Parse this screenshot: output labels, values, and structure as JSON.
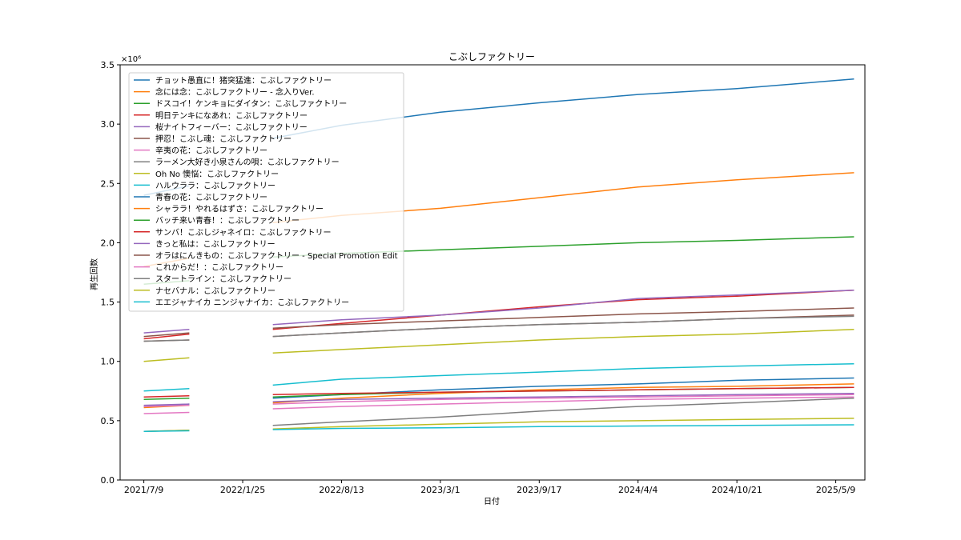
{
  "chart_data": {
    "type": "line",
    "title": "こぶしファクトリー",
    "xlabel": "日付",
    "ylabel": "再生回数",
    "y_scale_label": "×10⁶",
    "ylim": [
      0,
      3500000
    ],
    "y_ticks": [
      0,
      500000,
      1000000,
      1500000,
      2000000,
      2500000,
      3000000,
      3500000
    ],
    "y_tick_labels": [
      "0.0",
      "0.5",
      "1.0",
      "1.5",
      "2.0",
      "2.5",
      "3.0",
      "3.5"
    ],
    "xlim": [
      "2021-05-22",
      "2025-07-07"
    ],
    "x_ticks": [
      "2021-07-09",
      "2022-01-25",
      "2022-08-13",
      "2023-03-01",
      "2023-09-17",
      "2024-04-04",
      "2024-10-21",
      "2025-05-09"
    ],
    "x_tick_labels": [
      "2021/7/9",
      "2022/1/25",
      "2022/8/13",
      "2023/3/1",
      "2023/9/17",
      "2024/4/4",
      "2024/10/21",
      "2025/5/9"
    ],
    "grid": false,
    "legend_position": "upper-left",
    "segments": [
      [
        "2021-07-09",
        "2021-10-09"
      ],
      [
        "2022-03-27",
        "2025-06-15"
      ]
    ],
    "series": [
      {
        "name": "チョット愚直に！猪突猛進：こぶしファクトリー",
        "color": "#1f77b4",
        "points": [
          [
            "2021-07-09",
            2400000
          ],
          [
            "2021-10-09",
            2480000
          ],
          [
            "2022-03-27",
            2880000
          ],
          [
            "2022-08-13",
            2990000
          ],
          [
            "2023-03-01",
            3100000
          ],
          [
            "2023-09-17",
            3180000
          ],
          [
            "2024-04-04",
            3250000
          ],
          [
            "2024-10-21",
            3300000
          ],
          [
            "2025-06-15",
            3380000
          ]
        ]
      },
      {
        "name": "念には念：こぶしファクトリー - 念入りVer.",
        "color": "#ff7f0e",
        "points": [
          [
            "2021-07-09",
            1800000
          ],
          [
            "2021-10-09",
            1870000
          ],
          [
            "2022-03-27",
            2170000
          ],
          [
            "2022-08-13",
            2230000
          ],
          [
            "2023-03-01",
            2290000
          ],
          [
            "2023-09-17",
            2380000
          ],
          [
            "2024-04-04",
            2470000
          ],
          [
            "2024-10-21",
            2530000
          ],
          [
            "2025-06-15",
            2590000
          ]
        ]
      },
      {
        "name": "ドスコイ！ケンキョにダイタン：こぶしファクトリー",
        "color": "#2ca02c",
        "points": [
          [
            "2021-07-09",
            1650000
          ],
          [
            "2021-10-09",
            1680000
          ],
          [
            "2022-03-27",
            1880000
          ],
          [
            "2022-08-13",
            1910000
          ],
          [
            "2023-03-01",
            1940000
          ],
          [
            "2023-09-17",
            1970000
          ],
          [
            "2024-04-04",
            2000000
          ],
          [
            "2024-10-21",
            2020000
          ],
          [
            "2025-06-15",
            2050000
          ]
        ]
      },
      {
        "name": "明日テンキになあれ：こぶしファクトリー",
        "color": "#d62728",
        "points": [
          [
            "2021-07-09",
            1190000
          ],
          [
            "2021-10-09",
            1230000
          ],
          [
            "2022-03-27",
            1270000
          ],
          [
            "2022-08-13",
            1320000
          ],
          [
            "2023-03-01",
            1390000
          ],
          [
            "2023-09-17",
            1460000
          ],
          [
            "2024-04-04",
            1520000
          ],
          [
            "2024-10-21",
            1550000
          ],
          [
            "2025-06-15",
            1600000
          ]
        ]
      },
      {
        "name": "桜ナイトフィーバー：こぶしファクトリー",
        "color": "#9467bd",
        "points": [
          [
            "2021-07-09",
            1240000
          ],
          [
            "2021-10-09",
            1270000
          ],
          [
            "2022-03-27",
            1310000
          ],
          [
            "2022-08-13",
            1350000
          ],
          [
            "2023-03-01",
            1390000
          ],
          [
            "2023-09-17",
            1450000
          ],
          [
            "2024-04-04",
            1530000
          ],
          [
            "2024-10-21",
            1560000
          ],
          [
            "2025-06-15",
            1600000
          ]
        ]
      },
      {
        "name": "押忍！こぶし魂：こぶしファクトリー",
        "color": "#8c564b",
        "points": [
          [
            "2021-07-09",
            1210000
          ],
          [
            "2021-10-09",
            1240000
          ],
          [
            "2022-03-27",
            1280000
          ],
          [
            "2022-08-13",
            1310000
          ],
          [
            "2023-03-01",
            1340000
          ],
          [
            "2023-09-17",
            1370000
          ],
          [
            "2024-04-04",
            1400000
          ],
          [
            "2024-10-21",
            1420000
          ],
          [
            "2025-06-15",
            1450000
          ]
        ]
      },
      {
        "name": "辛夷の花：こぶしファクトリー",
        "color": "#e377c2",
        "points": [
          [
            "2021-07-09",
            560000
          ],
          [
            "2021-10-09",
            570000
          ],
          [
            "2022-03-27",
            600000
          ],
          [
            "2022-08-13",
            620000
          ],
          [
            "2023-03-01",
            640000
          ],
          [
            "2023-09-17",
            660000
          ],
          [
            "2024-04-04",
            680000
          ],
          [
            "2024-10-21",
            690000
          ],
          [
            "2025-06-15",
            700000
          ]
        ]
      },
      {
        "name": "ラーメン大好き小泉さんの唄：こぶしファクトリー",
        "color": "#7f7f7f",
        "points": [
          [
            "2021-07-09",
            410000
          ],
          [
            "2021-10-09",
            420000
          ],
          [
            "2022-03-27",
            460000
          ],
          [
            "2022-08-13",
            490000
          ],
          [
            "2023-03-01",
            530000
          ],
          [
            "2023-09-17",
            580000
          ],
          [
            "2024-04-04",
            620000
          ],
          [
            "2024-10-21",
            650000
          ],
          [
            "2025-06-15",
            690000
          ]
        ]
      },
      {
        "name": "Oh No 懊悩：こぶしファクトリー",
        "color": "#bcbd22",
        "points": [
          [
            "2021-07-09",
            1000000
          ],
          [
            "2021-10-09",
            1030000
          ],
          [
            "2022-03-27",
            1070000
          ],
          [
            "2022-08-13",
            1100000
          ],
          [
            "2023-03-01",
            1140000
          ],
          [
            "2023-09-17",
            1180000
          ],
          [
            "2024-04-04",
            1210000
          ],
          [
            "2024-10-21",
            1230000
          ],
          [
            "2025-06-15",
            1270000
          ]
        ]
      },
      {
        "name": "ハルウララ：こぶしファクトリー",
        "color": "#17becf",
        "points": [
          [
            "2021-07-09",
            750000
          ],
          [
            "2021-10-09",
            770000
          ],
          [
            "2022-03-27",
            800000
          ],
          [
            "2022-08-13",
            850000
          ],
          [
            "2023-03-01",
            880000
          ],
          [
            "2023-09-17",
            910000
          ],
          [
            "2024-04-04",
            940000
          ],
          [
            "2024-10-21",
            960000
          ],
          [
            "2025-06-15",
            980000
          ]
        ]
      },
      {
        "name": "青春の花：こぶしファクトリー",
        "color": "#1f77b4",
        "points": [
          [
            "2021-07-09",
            620000
          ],
          [
            "2021-10-09",
            640000
          ],
          [
            "2022-03-27",
            690000
          ],
          [
            "2022-08-13",
            720000
          ],
          [
            "2023-03-01",
            760000
          ],
          [
            "2023-09-17",
            790000
          ],
          [
            "2024-04-04",
            810000
          ],
          [
            "2024-10-21",
            840000
          ],
          [
            "2025-06-15",
            860000
          ]
        ]
      },
      {
        "name": "シャララ！やれるはずさ：こぶしファクトリー",
        "color": "#ff7f0e",
        "points": [
          [
            "2021-07-09",
            610000
          ],
          [
            "2021-10-09",
            630000
          ],
          [
            "2022-03-27",
            650000
          ],
          [
            "2022-08-13",
            690000
          ],
          [
            "2023-03-01",
            730000
          ],
          [
            "2023-09-17",
            760000
          ],
          [
            "2024-04-04",
            780000
          ],
          [
            "2024-10-21",
            790000
          ],
          [
            "2025-06-15",
            810000
          ]
        ]
      },
      {
        "name": "バッチ来い青春！：こぶしファクトリー",
        "color": "#2ca02c",
        "points": [
          [
            "2021-07-09",
            680000
          ],
          [
            "2021-10-09",
            690000
          ],
          [
            "2022-03-27",
            700000
          ],
          [
            "2022-08-13",
            720000
          ],
          [
            "2023-03-01",
            740000
          ],
          [
            "2023-09-17",
            750000
          ],
          [
            "2024-04-04",
            760000
          ],
          [
            "2024-10-21",
            770000
          ],
          [
            "2025-06-15",
            780000
          ]
        ]
      },
      {
        "name": "サンバ！こぶしジャネイロ：こぶしファクトリー",
        "color": "#d62728",
        "points": [
          [
            "2021-07-09",
            700000
          ],
          [
            "2021-10-09",
            710000
          ],
          [
            "2022-03-27",
            720000
          ],
          [
            "2022-08-13",
            730000
          ],
          [
            "2023-03-01",
            740000
          ],
          [
            "2023-09-17",
            750000
          ],
          [
            "2024-04-04",
            760000
          ],
          [
            "2024-10-21",
            770000
          ],
          [
            "2025-06-15",
            780000
          ]
        ]
      },
      {
        "name": "きっと私は：こぶしファクトリー",
        "color": "#9467bd",
        "points": [
          [
            "2021-07-09",
            630000
          ],
          [
            "2021-10-09",
            640000
          ],
          [
            "2022-03-27",
            660000
          ],
          [
            "2022-08-13",
            680000
          ],
          [
            "2023-03-01",
            690000
          ],
          [
            "2023-09-17",
            700000
          ],
          [
            "2024-04-04",
            710000
          ],
          [
            "2024-10-21",
            720000
          ],
          [
            "2025-06-15",
            730000
          ]
        ]
      },
      {
        "name": "オラはにんきもの：こぶしファクトリー - Special Promotion Edit",
        "color": "#8c564b",
        "points": [
          [
            "2021-07-09",
            1170000
          ],
          [
            "2021-10-09",
            1180000
          ],
          [
            "2022-03-27",
            1210000
          ],
          [
            "2022-08-13",
            1240000
          ],
          [
            "2023-03-01",
            1280000
          ],
          [
            "2023-09-17",
            1310000
          ],
          [
            "2024-04-04",
            1330000
          ],
          [
            "2024-10-21",
            1360000
          ],
          [
            "2025-06-15",
            1390000
          ]
        ]
      },
      {
        "name": "これからだ！：こぶしファクトリー",
        "color": "#e377c2",
        "points": [
          [
            "2021-07-09",
            620000
          ],
          [
            "2021-10-09",
            630000
          ],
          [
            "2022-03-27",
            640000
          ],
          [
            "2022-08-13",
            660000
          ],
          [
            "2023-03-01",
            680000
          ],
          [
            "2023-09-17",
            690000
          ],
          [
            "2024-04-04",
            700000
          ],
          [
            "2024-10-21",
            710000
          ],
          [
            "2025-06-15",
            720000
          ]
        ]
      },
      {
        "name": "スタートライン：こぶしファクトリー",
        "color": "#7f7f7f",
        "points": [
          [
            "2021-07-09",
            1170000
          ],
          [
            "2021-10-09",
            1180000
          ],
          [
            "2022-03-27",
            1210000
          ],
          [
            "2022-08-13",
            1240000
          ],
          [
            "2023-03-01",
            1280000
          ],
          [
            "2023-09-17",
            1310000
          ],
          [
            "2024-04-04",
            1330000
          ],
          [
            "2024-10-21",
            1360000
          ],
          [
            "2025-06-15",
            1380000
          ]
        ]
      },
      {
        "name": "ナセバナル：こぶしファクトリー",
        "color": "#bcbd22",
        "points": [
          [
            "2021-07-09",
            410000
          ],
          [
            "2021-10-09",
            420000
          ],
          [
            "2022-03-27",
            430000
          ],
          [
            "2022-08-13",
            450000
          ],
          [
            "2023-03-01",
            470000
          ],
          [
            "2023-09-17",
            490000
          ],
          [
            "2024-04-04",
            500000
          ],
          [
            "2024-10-21",
            510000
          ],
          [
            "2025-06-15",
            520000
          ]
        ]
      },
      {
        "name": "エエジャナイカ ニンジャナイカ：こぶしファクトリー",
        "color": "#17becf",
        "points": [
          [
            "2021-07-09",
            410000
          ],
          [
            "2021-10-09",
            415000
          ],
          [
            "2022-03-27",
            425000
          ],
          [
            "2022-08-13",
            435000
          ],
          [
            "2023-03-01",
            440000
          ],
          [
            "2023-09-17",
            450000
          ],
          [
            "2024-04-04",
            455000
          ],
          [
            "2024-10-21",
            460000
          ],
          [
            "2025-06-15",
            465000
          ]
        ]
      }
    ]
  }
}
